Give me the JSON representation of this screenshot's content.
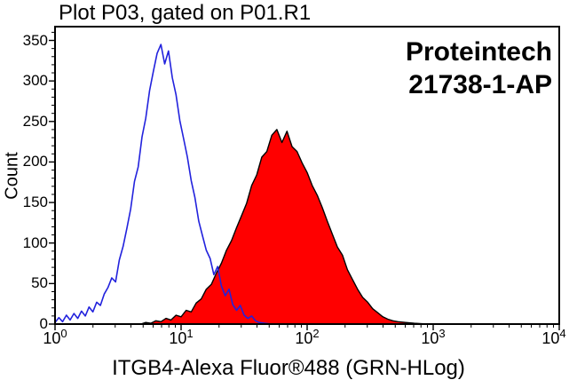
{
  "annotation": {
    "vendor": "Proteintech",
    "catalog": "21738-1-AP"
  },
  "chart_data": {
    "type": "area",
    "title": "Plot P03, gated on P01.R1",
    "xlabel": "ITGB4-Alexa Fluor®488 (GRN-HLog)",
    "ylabel": "Count",
    "x_scale": "log10",
    "x_units": "log10(fluorescence intensity)",
    "xlim_exponents": [
      0,
      4
    ],
    "ylim": [
      0,
      367
    ],
    "grid": false,
    "legend": "none",
    "y_ticks": [
      0,
      50,
      100,
      150,
      200,
      250,
      300,
      350
    ],
    "y_tick_labels": [
      "0",
      "50",
      "100",
      "150",
      "200",
      "250",
      "300",
      "350"
    ],
    "x_ticks": [
      {
        "base": "10",
        "exp": "0"
      },
      {
        "base": "10",
        "exp": "1"
      },
      {
        "base": "10",
        "exp": "2"
      },
      {
        "base": "10",
        "exp": "3"
      },
      {
        "base": "10",
        "exp": "4"
      }
    ],
    "series": [
      {
        "name": "red-filled-histogram (ITGB4 stained, peak ~240 counts at ~5.8e1)",
        "stroke": "#000000",
        "fill": "#ff0000",
        "points": [
          [
            0.68,
            0
          ],
          [
            0.72,
            2
          ],
          [
            0.76,
            1
          ],
          [
            0.8,
            4
          ],
          [
            0.84,
            3
          ],
          [
            0.88,
            7
          ],
          [
            0.92,
            5
          ],
          [
            0.96,
            11
          ],
          [
            1.0,
            9
          ],
          [
            1.04,
            17
          ],
          [
            1.08,
            15
          ],
          [
            1.12,
            26
          ],
          [
            1.16,
            31
          ],
          [
            1.2,
            43
          ],
          [
            1.24,
            49
          ],
          [
            1.28,
            63
          ],
          [
            1.32,
            75
          ],
          [
            1.36,
            91
          ],
          [
            1.4,
            103
          ],
          [
            1.44,
            119
          ],
          [
            1.48,
            134
          ],
          [
            1.52,
            149
          ],
          [
            1.56,
            171
          ],
          [
            1.6,
            184
          ],
          [
            1.64,
            206
          ],
          [
            1.68,
            213
          ],
          [
            1.72,
            233
          ],
          [
            1.76,
            240
          ],
          [
            1.8,
            224
          ],
          [
            1.84,
            238
          ],
          [
            1.88,
            219
          ],
          [
            1.92,
            213
          ],
          [
            1.96,
            199
          ],
          [
            2.0,
            187
          ],
          [
            2.04,
            171
          ],
          [
            2.08,
            159
          ],
          [
            2.12,
            144
          ],
          [
            2.16,
            127
          ],
          [
            2.2,
            111
          ],
          [
            2.24,
            95
          ],
          [
            2.28,
            85
          ],
          [
            2.32,
            67
          ],
          [
            2.36,
            55
          ],
          [
            2.4,
            43
          ],
          [
            2.44,
            33
          ],
          [
            2.48,
            27
          ],
          [
            2.52,
            19
          ],
          [
            2.56,
            14
          ],
          [
            2.6,
            9
          ],
          [
            2.64,
            6
          ],
          [
            2.68,
            4
          ],
          [
            2.72,
            3
          ],
          [
            2.78,
            2
          ],
          [
            2.85,
            1
          ],
          [
            2.95,
            0
          ]
        ]
      },
      {
        "name": "blue-open-histogram (control, peak ~345 counts at ~7e0)",
        "stroke": "#2222dd",
        "fill": "none",
        "points": [
          [
            0.0,
            2
          ],
          [
            0.03,
            8
          ],
          [
            0.06,
            3
          ],
          [
            0.09,
            11
          ],
          [
            0.12,
            5
          ],
          [
            0.15,
            13
          ],
          [
            0.18,
            7
          ],
          [
            0.21,
            16
          ],
          [
            0.24,
            10
          ],
          [
            0.27,
            21
          ],
          [
            0.3,
            15
          ],
          [
            0.33,
            27
          ],
          [
            0.36,
            23
          ],
          [
            0.39,
            37
          ],
          [
            0.42,
            45
          ],
          [
            0.45,
            57
          ],
          [
            0.48,
            52
          ],
          [
            0.51,
            79
          ],
          [
            0.54,
            96
          ],
          [
            0.57,
            118
          ],
          [
            0.6,
            142
          ],
          [
            0.63,
            176
          ],
          [
            0.66,
            194
          ],
          [
            0.69,
            231
          ],
          [
            0.72,
            254
          ],
          [
            0.75,
            288
          ],
          [
            0.78,
            312
          ],
          [
            0.81,
            334
          ],
          [
            0.84,
            345
          ],
          [
            0.87,
            321
          ],
          [
            0.9,
            337
          ],
          [
            0.93,
            304
          ],
          [
            0.96,
            283
          ],
          [
            0.99,
            251
          ],
          [
            1.02,
            229
          ],
          [
            1.05,
            206
          ],
          [
            1.08,
            177
          ],
          [
            1.11,
            156
          ],
          [
            1.14,
            127
          ],
          [
            1.17,
            109
          ],
          [
            1.2,
            91
          ],
          [
            1.23,
            81
          ],
          [
            1.26,
            61
          ],
          [
            1.29,
            71
          ],
          [
            1.32,
            47
          ],
          [
            1.35,
            35
          ],
          [
            1.38,
            43
          ],
          [
            1.41,
            24
          ],
          [
            1.44,
            17
          ],
          [
            1.47,
            23
          ],
          [
            1.5,
            11
          ],
          [
            1.53,
            7
          ],
          [
            1.56,
            10
          ],
          [
            1.59,
            4
          ],
          [
            1.62,
            2
          ],
          [
            1.66,
            1
          ],
          [
            1.72,
            0
          ]
        ]
      }
    ]
  }
}
